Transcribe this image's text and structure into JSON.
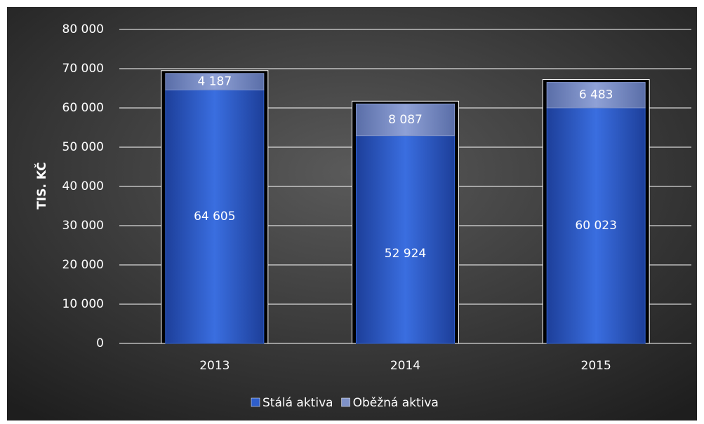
{
  "chart_data": {
    "type": "bar",
    "stacked": true,
    "y_label": "TIS. KČ",
    "categories": [
      "2013",
      "2014",
      "2015"
    ],
    "series": [
      {
        "name": "Stálá aktiva",
        "color": "#2f5fcc",
        "values": [
          64605,
          52924,
          60023
        ],
        "value_labels": [
          "64 605",
          "52 924",
          "60 023"
        ]
      },
      {
        "name": "Oběžná aktiva",
        "color": "#7f92c8",
        "values": [
          4187,
          8087,
          6483
        ],
        "value_labels": [
          "4 187",
          "8 087",
          "6 483"
        ]
      }
    ],
    "ylim": [
      0,
      80000
    ],
    "yticks": [
      {
        "value": 0,
        "label": "0"
      },
      {
        "value": 10000,
        "label": "10 000"
      },
      {
        "value": 20000,
        "label": "20 000"
      },
      {
        "value": 30000,
        "label": "30 000"
      },
      {
        "value": 40000,
        "label": "40 000"
      },
      {
        "value": 50000,
        "label": "50 000"
      },
      {
        "value": 60000,
        "label": "60 000"
      },
      {
        "value": 70000,
        "label": "70 000"
      },
      {
        "value": 80000,
        "label": "80 000"
      }
    ],
    "grid": true,
    "legend": "bottom"
  }
}
